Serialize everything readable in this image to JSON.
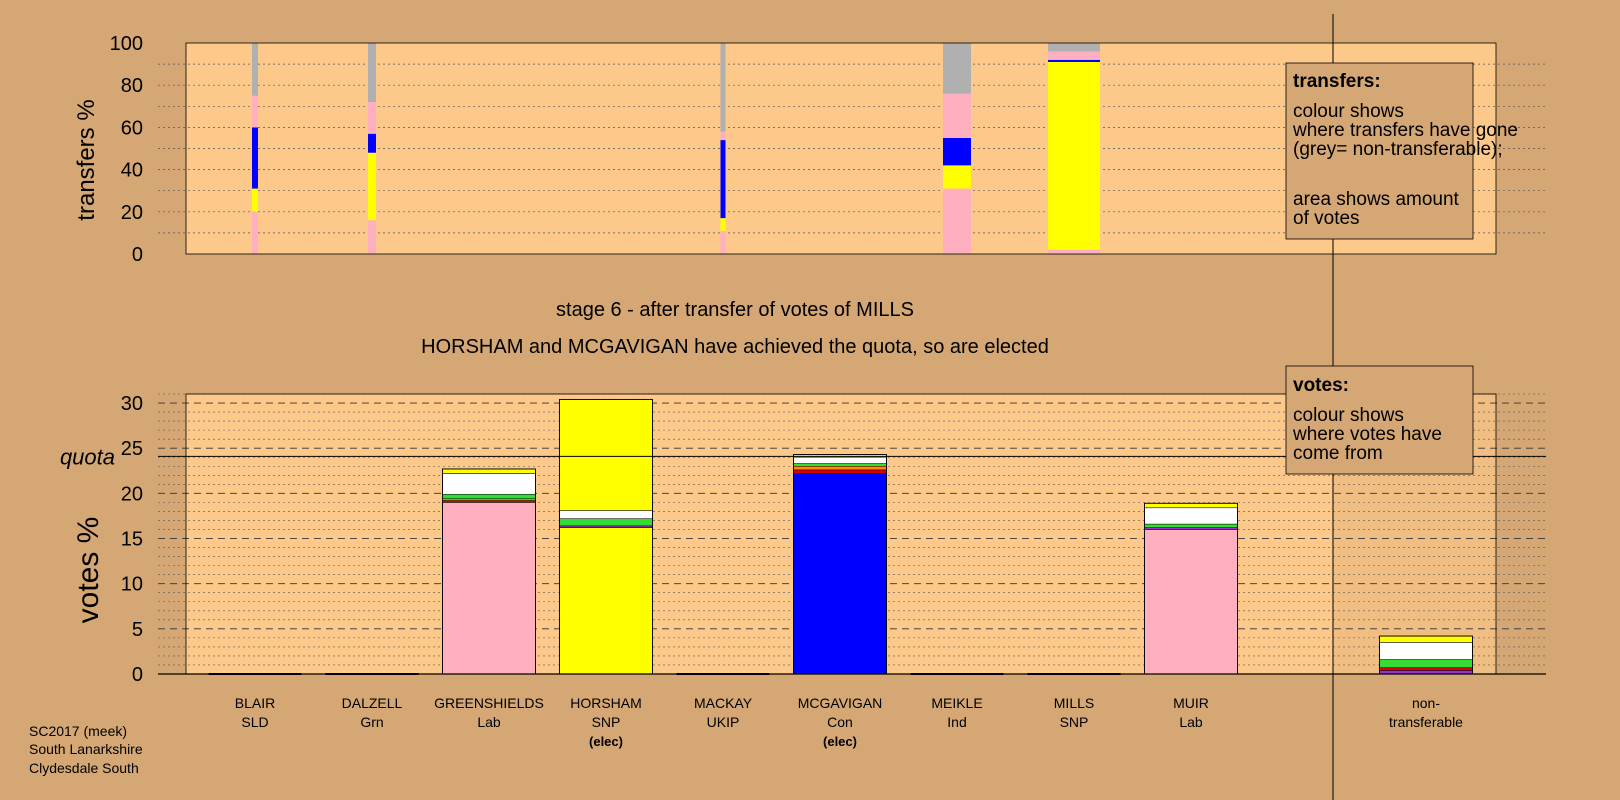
{
  "colors": {
    "background": "#d4a774",
    "plot_bg": "#fdc98a",
    "SNP": "#ffff00",
    "Con": "#0000ff",
    "Lab": "#ffb0c0",
    "nontransferable": "#b0b0b0",
    "white": "#ffffff",
    "green": "#33dd33",
    "purple": "#9933cc",
    "orange": "#ff8c00",
    "red": "#dd0000"
  },
  "legend_transfers": {
    "title": "transfers:",
    "body": "colour shows where transfers have gone (grey= non-transferable);",
    "body2": "area shows amount of votes"
  },
  "legend_votes": {
    "title": "votes:",
    "body": "colour shows where votes have come from"
  },
  "stage_title": "stage 6 - after transfer of votes of MILLS",
  "stage_subtitle": "HORSHAM and MCGAVIGAN have achieved the quota, so are elected",
  "footer": [
    "SC2017 (meek)",
    "South Lanarkshire",
    "Clydesdale South"
  ],
  "quota_label": "quota",
  "chart_data": [
    {
      "type": "bar",
      "ylabel": "transfers %",
      "ylim": [
        0,
        100
      ],
      "yticks": [
        0,
        20,
        40,
        60,
        80,
        100
      ],
      "grid": true,
      "legend_placement": "top-right",
      "bars": [
        {
          "candidate": "BLAIR",
          "segments": [
            {
              "color": "Lab",
              "value": 20
            },
            {
              "color": "SNP",
              "value": 11
            },
            {
              "color": "Con",
              "value": 29
            },
            {
              "color": "Lab",
              "value": 15
            },
            {
              "color": "nontransferable",
              "value": 25
            }
          ]
        },
        {
          "candidate": "DALZELL",
          "segments": [
            {
              "color": "Lab",
              "value": 16
            },
            {
              "color": "SNP",
              "value": 32
            },
            {
              "color": "Con",
              "value": 9
            },
            {
              "color": "Lab",
              "value": 15
            },
            {
              "color": "nontransferable",
              "value": 28
            }
          ]
        },
        {
          "candidate": "MACKAY",
          "segments": [
            {
              "color": "Lab",
              "value": 11
            },
            {
              "color": "SNP",
              "value": 6
            },
            {
              "color": "Con",
              "value": 37
            },
            {
              "color": "Lab",
              "value": 4
            },
            {
              "color": "nontransferable",
              "value": 42
            }
          ]
        },
        {
          "candidate": "MEIKLE",
          "segments": [
            {
              "color": "Lab",
              "value": 31
            },
            {
              "color": "SNP",
              "value": 11
            },
            {
              "color": "Con",
              "value": 13
            },
            {
              "color": "Lab",
              "value": 21
            },
            {
              "color": "nontransferable",
              "value": 24
            }
          ]
        },
        {
          "candidate": "MILLS",
          "segments": [
            {
              "color": "Lab",
              "value": 2
            },
            {
              "color": "SNP",
              "value": 89
            },
            {
              "color": "Con",
              "value": 1
            },
            {
              "color": "Lab",
              "value": 4
            },
            {
              "color": "nontransferable",
              "value": 4
            }
          ]
        }
      ]
    },
    {
      "type": "bar",
      "ylabel": "votes %",
      "ylim": [
        0,
        31
      ],
      "yticks": [
        0,
        5,
        10,
        15,
        20,
        25,
        30
      ],
      "quota": 24.1,
      "grid": true,
      "legend_placement": "top-right",
      "categories": [
        {
          "name": "BLAIR",
          "party": "SLD",
          "elected": "",
          "total": 0
        },
        {
          "name": "DALZELL",
          "party": "Grn",
          "elected": "",
          "total": 0
        },
        {
          "name": "GREENSHIELDS",
          "party": "Lab",
          "elected": "",
          "total": 22.7
        },
        {
          "name": "HORSHAM",
          "party": "SNP",
          "elected": "(elec)",
          "total": 30.4
        },
        {
          "name": "MACKAY",
          "party": "UKIP",
          "elected": "",
          "total": 0
        },
        {
          "name": "MCGAVIGAN",
          "party": "Con",
          "elected": "(elec)",
          "total": 24.3
        },
        {
          "name": "MEIKLE",
          "party": "Ind",
          "elected": "",
          "total": 0
        },
        {
          "name": "MILLS",
          "party": "SNP",
          "elected": "",
          "total": 0
        },
        {
          "name": "MUIR",
          "party": "Lab",
          "elected": "",
          "total": 18.9
        },
        {
          "name": "non-",
          "party": "transferable",
          "elected": "",
          "total": 4.2
        }
      ],
      "segments": [
        [],
        [],
        [
          {
            "color": "Lab",
            "value": 19.0
          },
          {
            "color": "red",
            "value": 0.2
          },
          {
            "color": "orange",
            "value": 0.2
          },
          {
            "color": "green",
            "value": 0.5
          },
          {
            "color": "white",
            "value": 2.3
          },
          {
            "color": "SNP",
            "value": 0.5
          }
        ],
        [
          {
            "color": "SNP",
            "value": 16.2
          },
          {
            "color": "purple",
            "value": 0.2
          },
          {
            "color": "green",
            "value": 0.8
          },
          {
            "color": "white",
            "value": 0.9
          },
          {
            "color": "SNP",
            "value": 12.3
          }
        ],
        [],
        [
          {
            "color": "Con",
            "value": 22.2
          },
          {
            "color": "red",
            "value": 0.4
          },
          {
            "color": "orange",
            "value": 0.4
          },
          {
            "color": "green",
            "value": 0.3
          },
          {
            "color": "white",
            "value": 0.7
          },
          {
            "color": "SNP",
            "value": 0.3
          }
        ],
        [],
        [],
        [
          {
            "color": "Lab",
            "value": 16.0
          },
          {
            "color": "purple",
            "value": 0.2
          },
          {
            "color": "green",
            "value": 0.4
          },
          {
            "color": "white",
            "value": 1.8
          },
          {
            "color": "SNP",
            "value": 0.5
          }
        ],
        [
          {
            "color": "purple",
            "value": 0.4
          },
          {
            "color": "red",
            "value": 0.3
          },
          {
            "color": "green",
            "value": 0.9
          },
          {
            "color": "white",
            "value": 1.9
          },
          {
            "color": "SNP",
            "value": 0.7
          }
        ]
      ]
    }
  ]
}
